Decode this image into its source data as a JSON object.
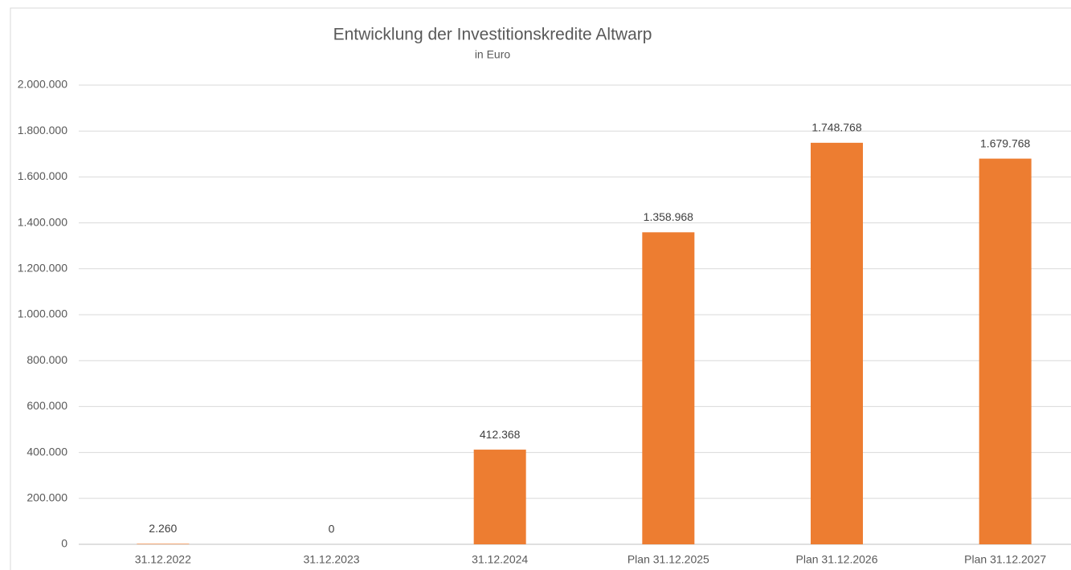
{
  "chart_data": {
    "type": "bar",
    "title": "Entwicklung der Investitionskredite Altwarp",
    "subtitle": "in  Euro",
    "categories": [
      "31.12.2022",
      "31.12.2023",
      "31.12.2024",
      "Plan 31.12.2025",
      "Plan 31.12.2026",
      "Plan 31.12.2027"
    ],
    "values": [
      2260,
      0,
      412368,
      1358968,
      1748768,
      1679768
    ],
    "value_labels": [
      "2.260",
      "0",
      "412.368",
      "1.358.968",
      "1.748.768",
      "1.679.768"
    ],
    "color": "#ed7d31",
    "ylim": [
      0,
      2000000
    ],
    "yticks": [
      0,
      {
        "value": 200000,
        "label": "200.000"
      },
      {
        "value": 400000,
        "label": "400.000"
      },
      {
        "value": 600000,
        "label": "600.000"
      },
      {
        "value": 800000,
        "label": "800.000"
      },
      {
        "value": 1000000,
        "label": "1.000.000"
      },
      {
        "value": 1200000,
        "label": "1.200.000"
      },
      {
        "value": 1400000,
        "label": "1.400.000"
      },
      {
        "value": 1600000,
        "label": "1.600.000"
      },
      {
        "value": 1800000,
        "label": "1.800.000"
      },
      {
        "value": 2000000,
        "label": "2.000.000"
      }
    ],
    "grid": true
  }
}
